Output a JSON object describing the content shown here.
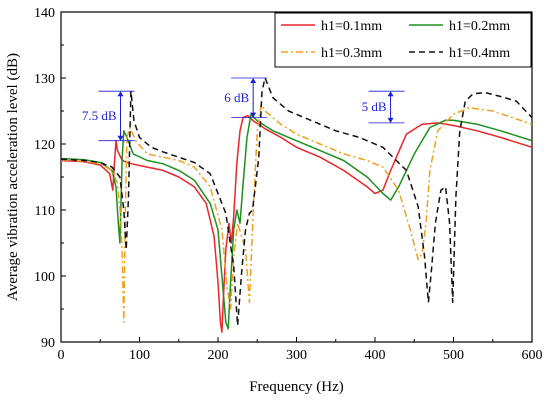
{
  "chart_data": {
    "type": "line",
    "xlabel": "Frequency (Hz)",
    "ylabel": "Average vibration acceleration level (dB)",
    "xlim": [
      0,
      600
    ],
    "ylim": [
      90,
      140
    ],
    "xticks": [
      0,
      100,
      200,
      300,
      400,
      500,
      600
    ],
    "yticks": [
      90,
      100,
      110,
      120,
      130,
      140
    ],
    "grid": false,
    "legend_position": "top-right",
    "legend": [
      "h1=0.1mm",
      "h1=0.2mm",
      "h1=0.3mm",
      "h1=0.4mm"
    ],
    "series": [
      {
        "name": "h1=0.1mm",
        "color": "#e8262b",
        "dash": "solid",
        "x": [
          0,
          30,
          50,
          62,
          66,
          68,
          70,
          72,
          78,
          90,
          110,
          130,
          150,
          170,
          185,
          195,
          200,
          203,
          205,
          207,
          210,
          214,
          217,
          220,
          224,
          228,
          232,
          238,
          245,
          260,
          280,
          300,
          330,
          360,
          390,
          400,
          410,
          420,
          440,
          460,
          480,
          500,
          530,
          560,
          600
        ],
        "y": [
          117.5,
          117.3,
          116.8,
          115.5,
          113.0,
          117.0,
          120.5,
          119.0,
          117.5,
          117.0,
          116.5,
          116.0,
          115.0,
          113.5,
          111.0,
          106.0,
          99.0,
          93.0,
          91.5,
          97.0,
          104.0,
          108.0,
          105.0,
          109.0,
          117.0,
          122.0,
          124.0,
          124.3,
          123.5,
          122.3,
          121.0,
          119.5,
          118.0,
          116.0,
          113.5,
          112.5,
          113.0,
          116.0,
          121.5,
          123.0,
          123.2,
          122.8,
          122.0,
          121.0,
          119.5
        ]
      },
      {
        "name": "h1=0.2mm",
        "color": "#1f8f1f",
        "dash": "solid",
        "x": [
          0,
          30,
          50,
          65,
          70,
          73,
          75,
          78,
          80,
          84,
          92,
          110,
          130,
          150,
          170,
          190,
          200,
          205,
          210,
          213,
          216,
          220,
          224,
          228,
          232,
          237,
          242,
          250,
          270,
          300,
          330,
          360,
          390,
          410,
          420,
          430,
          450,
          470,
          490,
          500,
          530,
          560,
          600
        ],
        "y": [
          117.8,
          117.6,
          117.2,
          116.0,
          113.5,
          108.0,
          105.0,
          118.0,
          122.0,
          121.0,
          118.5,
          117.5,
          117.0,
          116.0,
          114.5,
          111.0,
          107.0,
          100.0,
          93.0,
          92.0,
          99.0,
          107.0,
          110.0,
          108.0,
          114.0,
          121.0,
          124.5,
          123.5,
          122.0,
          120.5,
          119.0,
          117.5,
          115.0,
          112.5,
          111.5,
          113.5,
          118.5,
          122.5,
          123.6,
          123.6,
          123.0,
          122.0,
          120.5
        ]
      },
      {
        "name": "h1=0.3mm",
        "color": "#f0a020",
        "dash": "dashdot",
        "x": [
          0,
          30,
          50,
          65,
          72,
          76,
          78,
          80,
          82,
          84,
          88,
          95,
          110,
          130,
          150,
          170,
          190,
          205,
          212,
          216,
          220,
          225,
          230,
          235,
          240,
          245,
          250,
          255,
          260,
          280,
          300,
          330,
          360,
          390,
          410,
          430,
          445,
          455,
          460,
          465,
          470,
          480,
          500,
          520,
          550,
          600
        ],
        "y": [
          117.6,
          117.4,
          117.0,
          116.0,
          114.0,
          109.0,
          103.0,
          93.0,
          110.0,
          121.0,
          122.5,
          120.5,
          118.5,
          118.0,
          117.5,
          116.5,
          113.5,
          107.0,
          98.0,
          95.0,
          103.0,
          108.0,
          106.0,
          104.0,
          96.0,
          110.0,
          122.0,
          126.0,
          125.0,
          123.0,
          121.5,
          120.0,
          118.5,
          117.5,
          116.5,
          113.0,
          107.0,
          102.5,
          103.5,
          108.0,
          116.0,
          122.0,
          124.5,
          125.5,
          125.0,
          123.0
        ]
      },
      {
        "name": "h1=0.4mm",
        "color": "#111111",
        "dash": "dashed",
        "x": [
          0,
          30,
          50,
          65,
          75,
          80,
          83,
          86,
          89,
          93,
          100,
          115,
          130,
          150,
          170,
          190,
          210,
          220,
          225,
          230,
          235,
          240,
          244,
          248,
          252,
          256,
          260,
          270,
          290,
          320,
          350,
          380,
          410,
          440,
          455,
          463,
          468,
          472,
          477,
          484,
          490,
          495,
          499,
          503,
          508,
          515,
          525,
          540,
          560,
          580,
          600
        ],
        "y": [
          117.7,
          117.5,
          117.2,
          116.5,
          115.0,
          110.0,
          104.0,
          112.0,
          128.0,
          123.5,
          121.0,
          119.5,
          118.8,
          118.0,
          117.2,
          115.5,
          109.5,
          101.5,
          92.5,
          100.5,
          107.0,
          109.5,
          110.0,
          114.0,
          118.0,
          128.0,
          130.0,
          127.0,
          125.0,
          123.5,
          122.0,
          121.0,
          119.5,
          116.0,
          110.5,
          103.0,
          96.0,
          101.0,
          108.0,
          113.0,
          113.5,
          108.0,
          96.0,
          112.0,
          122.0,
          126.5,
          127.6,
          127.8,
          127.2,
          126.5,
          124.0
        ]
      }
    ],
    "annotations": [
      {
        "label": "7.5 dB",
        "x": 86,
        "y_low": 120.5,
        "y_high": 128.0
      },
      {
        "label": "6 dB",
        "x": 255,
        "y_low": 124.0,
        "y_high": 130.0
      },
      {
        "label": "5 dB",
        "x": 430,
        "y_low": 123.2,
        "y_high": 128.0
      }
    ]
  }
}
